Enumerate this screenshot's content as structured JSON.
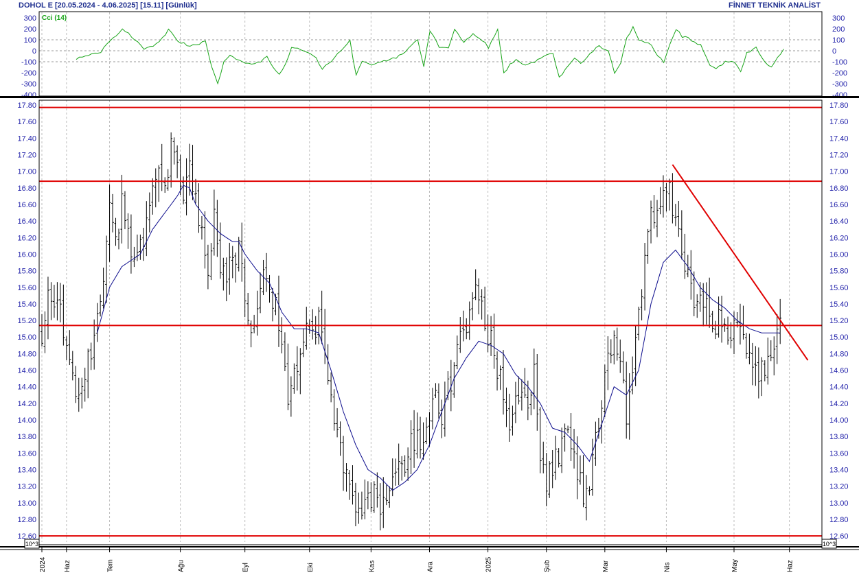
{
  "header": {
    "title_left": "DOHOL E  [20.05.2024 - 4.06.2025]  [15.11]  [Günlük]",
    "title_right": "FİNNET TEKNİK ANALİST"
  },
  "chart_data": [
    {
      "type": "line",
      "title": "Cci (14)",
      "ylim": [
        -400,
        300
      ],
      "yticks": [
        300,
        200,
        100,
        0,
        -100,
        -200,
        -300,
        -400
      ],
      "grid": true,
      "reference_lines": [
        100,
        0,
        -100
      ],
      "colors": {
        "series": "#19a519"
      },
      "series": [
        {
          "name": "Cci (14)",
          "keypoints": [
            [
              0,
              -70
            ],
            [
              3,
              -40
            ],
            [
              8,
              -10
            ],
            [
              12,
              120
            ],
            [
              15,
              190
            ],
            [
              17,
              160
            ],
            [
              20,
              80
            ],
            [
              22,
              10
            ],
            [
              25,
              40
            ],
            [
              28,
              110
            ],
            [
              30,
              200
            ],
            [
              33,
              90
            ],
            [
              37,
              40
            ],
            [
              39,
              60
            ],
            [
              42,
              80
            ],
            [
              44,
              -140
            ],
            [
              46,
              -310
            ],
            [
              48,
              -100
            ],
            [
              50,
              -30
            ],
            [
              53,
              -90
            ],
            [
              56,
              -120
            ],
            [
              60,
              -100
            ],
            [
              62,
              -60
            ],
            [
              64,
              -150
            ],
            [
              66,
              -210
            ],
            [
              68,
              -130
            ],
            [
              70,
              20
            ],
            [
              72,
              20
            ],
            [
              75,
              -10
            ],
            [
              78,
              -60
            ],
            [
              80,
              -170
            ],
            [
              83,
              -90
            ],
            [
              86,
              0
            ],
            [
              88,
              70
            ],
            [
              89,
              90
            ],
            [
              91,
              -230
            ],
            [
              93,
              -90
            ],
            [
              96,
              -120
            ],
            [
              99,
              -100
            ],
            [
              102,
              -80
            ],
            [
              104,
              -60
            ],
            [
              106,
              -30
            ],
            [
              109,
              50
            ],
            [
              111,
              110
            ],
            [
              113,
              -150
            ],
            [
              115,
              190
            ],
            [
              118,
              40
            ],
            [
              121,
              20
            ],
            [
              123,
              200
            ],
            [
              126,
              80
            ],
            [
              129,
              150
            ],
            [
              132,
              100
            ],
            [
              134,
              30
            ],
            [
              137,
              200
            ],
            [
              139,
              -200
            ],
            [
              141,
              -130
            ],
            [
              143,
              -90
            ],
            [
              146,
              -140
            ],
            [
              149,
              -100
            ],
            [
              152,
              -40
            ],
            [
              155,
              -20
            ],
            [
              157,
              -250
            ],
            [
              159,
              -170
            ],
            [
              162,
              -60
            ],
            [
              164,
              -110
            ],
            [
              167,
              -30
            ],
            [
              170,
              50
            ],
            [
              173,
              -10
            ],
            [
              175,
              -200
            ],
            [
              177,
              -110
            ],
            [
              179,
              120
            ],
            [
              181,
              210
            ],
            [
              183,
              100
            ],
            [
              187,
              50
            ],
            [
              189,
              -50
            ],
            [
              191,
              -100
            ],
            [
              193,
              60
            ],
            [
              195,
              200
            ],
            [
              197,
              130
            ],
            [
              200,
              100
            ],
            [
              203,
              50
            ],
            [
              206,
              -140
            ],
            [
              208,
              -170
            ],
            [
              211,
              -100
            ],
            [
              214,
              -110
            ],
            [
              216,
              -180
            ],
            [
              218,
              -20
            ],
            [
              221,
              30
            ],
            [
              224,
              -100
            ],
            [
              226,
              -150
            ],
            [
              228,
              -60
            ],
            [
              230,
              10
            ]
          ]
        }
      ]
    },
    {
      "type": "ohlc",
      "ylim": [
        12.5,
        17.9
      ],
      "yticks": [
        "17.80",
        "17.60",
        "17.40",
        "17.20",
        "17.00",
        "16.80",
        "16.60",
        "16.40",
        "16.20",
        "16.00",
        "15.80",
        "15.60",
        "15.40",
        "15.20",
        "15.00",
        "14.80",
        "14.60",
        "14.40",
        "14.20",
        "14.00",
        "13.80",
        "13.60",
        "13.40",
        "13.20",
        "13.00",
        "12.80",
        "12.60"
      ],
      "xaxis_labels": [
        "2024",
        "Haz",
        "Tem",
        "Ağu",
        "Eyl",
        "Eki",
        "Kas",
        "Ara",
        "2025",
        "Şub",
        "Mar",
        "Nis",
        "May",
        "Haz"
      ],
      "xaxis_label_days": [
        0,
        8,
        22,
        45,
        66,
        87,
        107,
        126,
        145,
        164,
        183,
        203,
        225,
        243
      ],
      "axis_multiplier_label": "10^3",
      "horizontal_levels": [
        17.77,
        16.88,
        15.14,
        12.6
      ],
      "trendline": {
        "from": [
          205,
          17.08
        ],
        "to": [
          249,
          14.72
        ]
      },
      "colors": {
        "bars": "#000000",
        "moving_average": "#0b0b8c",
        "levels": "#e00000"
      },
      "close_keypoints": [
        [
          0,
          15.05
        ],
        [
          2,
          15.4
        ],
        [
          5,
          15.6
        ],
        [
          7,
          15.0
        ],
        [
          9,
          14.6
        ],
        [
          11,
          14.3
        ],
        [
          13,
          14.5
        ],
        [
          16,
          14.8
        ],
        [
          18,
          15.3
        ],
        [
          20,
          15.8
        ],
        [
          22,
          16.5
        ],
        [
          24,
          16.1
        ],
        [
          26,
          16.7
        ],
        [
          28,
          16.3
        ],
        [
          30,
          15.9
        ],
        [
          32,
          16.1
        ],
        [
          34,
          16.4
        ],
        [
          36,
          16.7
        ],
        [
          38,
          17.15
        ],
        [
          40,
          16.9
        ],
        [
          42,
          17.3
        ],
        [
          44,
          17.1
        ],
        [
          46,
          16.8
        ],
        [
          48,
          17.0
        ],
        [
          50,
          16.6
        ],
        [
          52,
          16.3
        ],
        [
          54,
          15.9
        ],
        [
          56,
          16.4
        ],
        [
          58,
          15.9
        ],
        [
          60,
          15.7
        ],
        [
          62,
          15.95
        ],
        [
          64,
          16.1
        ],
        [
          66,
          15.4
        ],
        [
          68,
          15.0
        ],
        [
          70,
          15.3
        ],
        [
          72,
          15.8
        ],
        [
          74,
          15.6
        ],
        [
          76,
          15.4
        ],
        [
          78,
          14.8
        ],
        [
          80,
          14.3
        ],
        [
          82,
          14.6
        ],
        [
          84,
          14.9
        ],
        [
          86,
          15.2
        ],
        [
          88,
          15.0
        ],
        [
          90,
          15.3
        ],
        [
          92,
          14.9
        ],
        [
          94,
          14.2
        ],
        [
          96,
          13.8
        ],
        [
          98,
          13.5
        ],
        [
          100,
          13.2
        ],
        [
          102,
          13.0
        ],
        [
          104,
          12.9
        ],
        [
          106,
          13.1
        ],
        [
          108,
          13.05
        ],
        [
          110,
          12.95
        ],
        [
          112,
          13.1
        ],
        [
          114,
          13.2
        ],
        [
          116,
          13.4
        ],
        [
          118,
          13.5
        ],
        [
          120,
          13.7
        ],
        [
          122,
          13.8
        ],
        [
          124,
          13.6
        ],
        [
          126,
          14.1
        ],
        [
          128,
          14.3
        ],
        [
          130,
          14.0
        ],
        [
          132,
          14.4
        ],
        [
          134,
          14.6
        ],
        [
          136,
          15.0
        ],
        [
          138,
          15.2
        ],
        [
          140,
          15.4
        ],
        [
          142,
          15.6
        ],
        [
          144,
          15.1
        ],
        [
          146,
          15.0
        ],
        [
          148,
          14.6
        ],
        [
          150,
          14.3
        ],
        [
          152,
          14.0
        ],
        [
          154,
          14.2
        ],
        [
          156,
          14.4
        ],
        [
          158,
          14.3
        ],
        [
          160,
          14.5
        ],
        [
          162,
          13.5
        ],
        [
          164,
          13.2
        ],
        [
          166,
          13.4
        ],
        [
          168,
          13.6
        ],
        [
          170,
          13.8
        ],
        [
          172,
          13.7
        ],
        [
          174,
          13.3
        ],
        [
          176,
          13.1
        ],
        [
          178,
          13.3
        ],
        [
          180,
          13.8
        ],
        [
          182,
          14.3
        ],
        [
          184,
          14.8
        ],
        [
          186,
          15.0
        ],
        [
          188,
          14.6
        ],
        [
          190,
          14.1
        ],
        [
          192,
          14.7
        ],
        [
          194,
          15.3
        ],
        [
          196,
          16.0
        ],
        [
          198,
          16.5
        ],
        [
          200,
          16.6
        ],
        [
          202,
          16.75
        ],
        [
          204,
          16.7
        ],
        [
          206,
          16.4
        ],
        [
          208,
          16.0
        ],
        [
          210,
          15.9
        ],
        [
          212,
          15.5
        ],
        [
          214,
          15.6
        ],
        [
          216,
          15.3
        ],
        [
          218,
          15.0
        ],
        [
          220,
          15.2
        ],
        [
          222,
          15.1
        ],
        [
          224,
          15.0
        ],
        [
          226,
          15.3
        ],
        [
          228,
          14.9
        ],
        [
          230,
          14.7
        ],
        [
          232,
          14.5
        ],
        [
          234,
          14.6
        ],
        [
          236,
          14.8
        ],
        [
          238,
          15.0
        ],
        [
          240,
          15.11
        ]
      ],
      "ma_keypoints": [
        [
          18,
          15.05
        ],
        [
          22,
          15.6
        ],
        [
          26,
          15.85
        ],
        [
          32,
          16.0
        ],
        [
          36,
          16.3
        ],
        [
          40,
          16.5
        ],
        [
          44,
          16.7
        ],
        [
          46,
          16.83
        ],
        [
          48,
          16.8
        ],
        [
          50,
          16.6
        ],
        [
          54,
          16.4
        ],
        [
          58,
          16.25
        ],
        [
          62,
          16.15
        ],
        [
          64,
          16.15
        ],
        [
          66,
          16.0
        ],
        [
          70,
          15.8
        ],
        [
          74,
          15.65
        ],
        [
          78,
          15.3
        ],
        [
          82,
          15.1
        ],
        [
          86,
          15.1
        ],
        [
          90,
          15.05
        ],
        [
          94,
          14.6
        ],
        [
          98,
          14.1
        ],
        [
          102,
          13.7
        ],
        [
          106,
          13.4
        ],
        [
          110,
          13.3
        ],
        [
          114,
          13.15
        ],
        [
          118,
          13.25
        ],
        [
          122,
          13.4
        ],
        [
          126,
          13.7
        ],
        [
          130,
          14.1
        ],
        [
          134,
          14.5
        ],
        [
          138,
          14.75
        ],
        [
          142,
          14.95
        ],
        [
          146,
          14.9
        ],
        [
          150,
          14.8
        ],
        [
          154,
          14.55
        ],
        [
          158,
          14.4
        ],
        [
          162,
          14.2
        ],
        [
          166,
          13.9
        ],
        [
          170,
          13.85
        ],
        [
          174,
          13.7
        ],
        [
          178,
          13.5
        ],
        [
          182,
          13.95
        ],
        [
          186,
          14.4
        ],
        [
          190,
          14.3
        ],
        [
          194,
          14.6
        ],
        [
          198,
          15.4
        ],
        [
          202,
          15.9
        ],
        [
          206,
          16.05
        ],
        [
          210,
          15.85
        ],
        [
          214,
          15.6
        ],
        [
          218,
          15.45
        ],
        [
          222,
          15.35
        ],
        [
          226,
          15.2
        ],
        [
          230,
          15.1
        ],
        [
          234,
          15.05
        ],
        [
          238,
          15.05
        ],
        [
          240,
          15.05
        ]
      ]
    }
  ]
}
